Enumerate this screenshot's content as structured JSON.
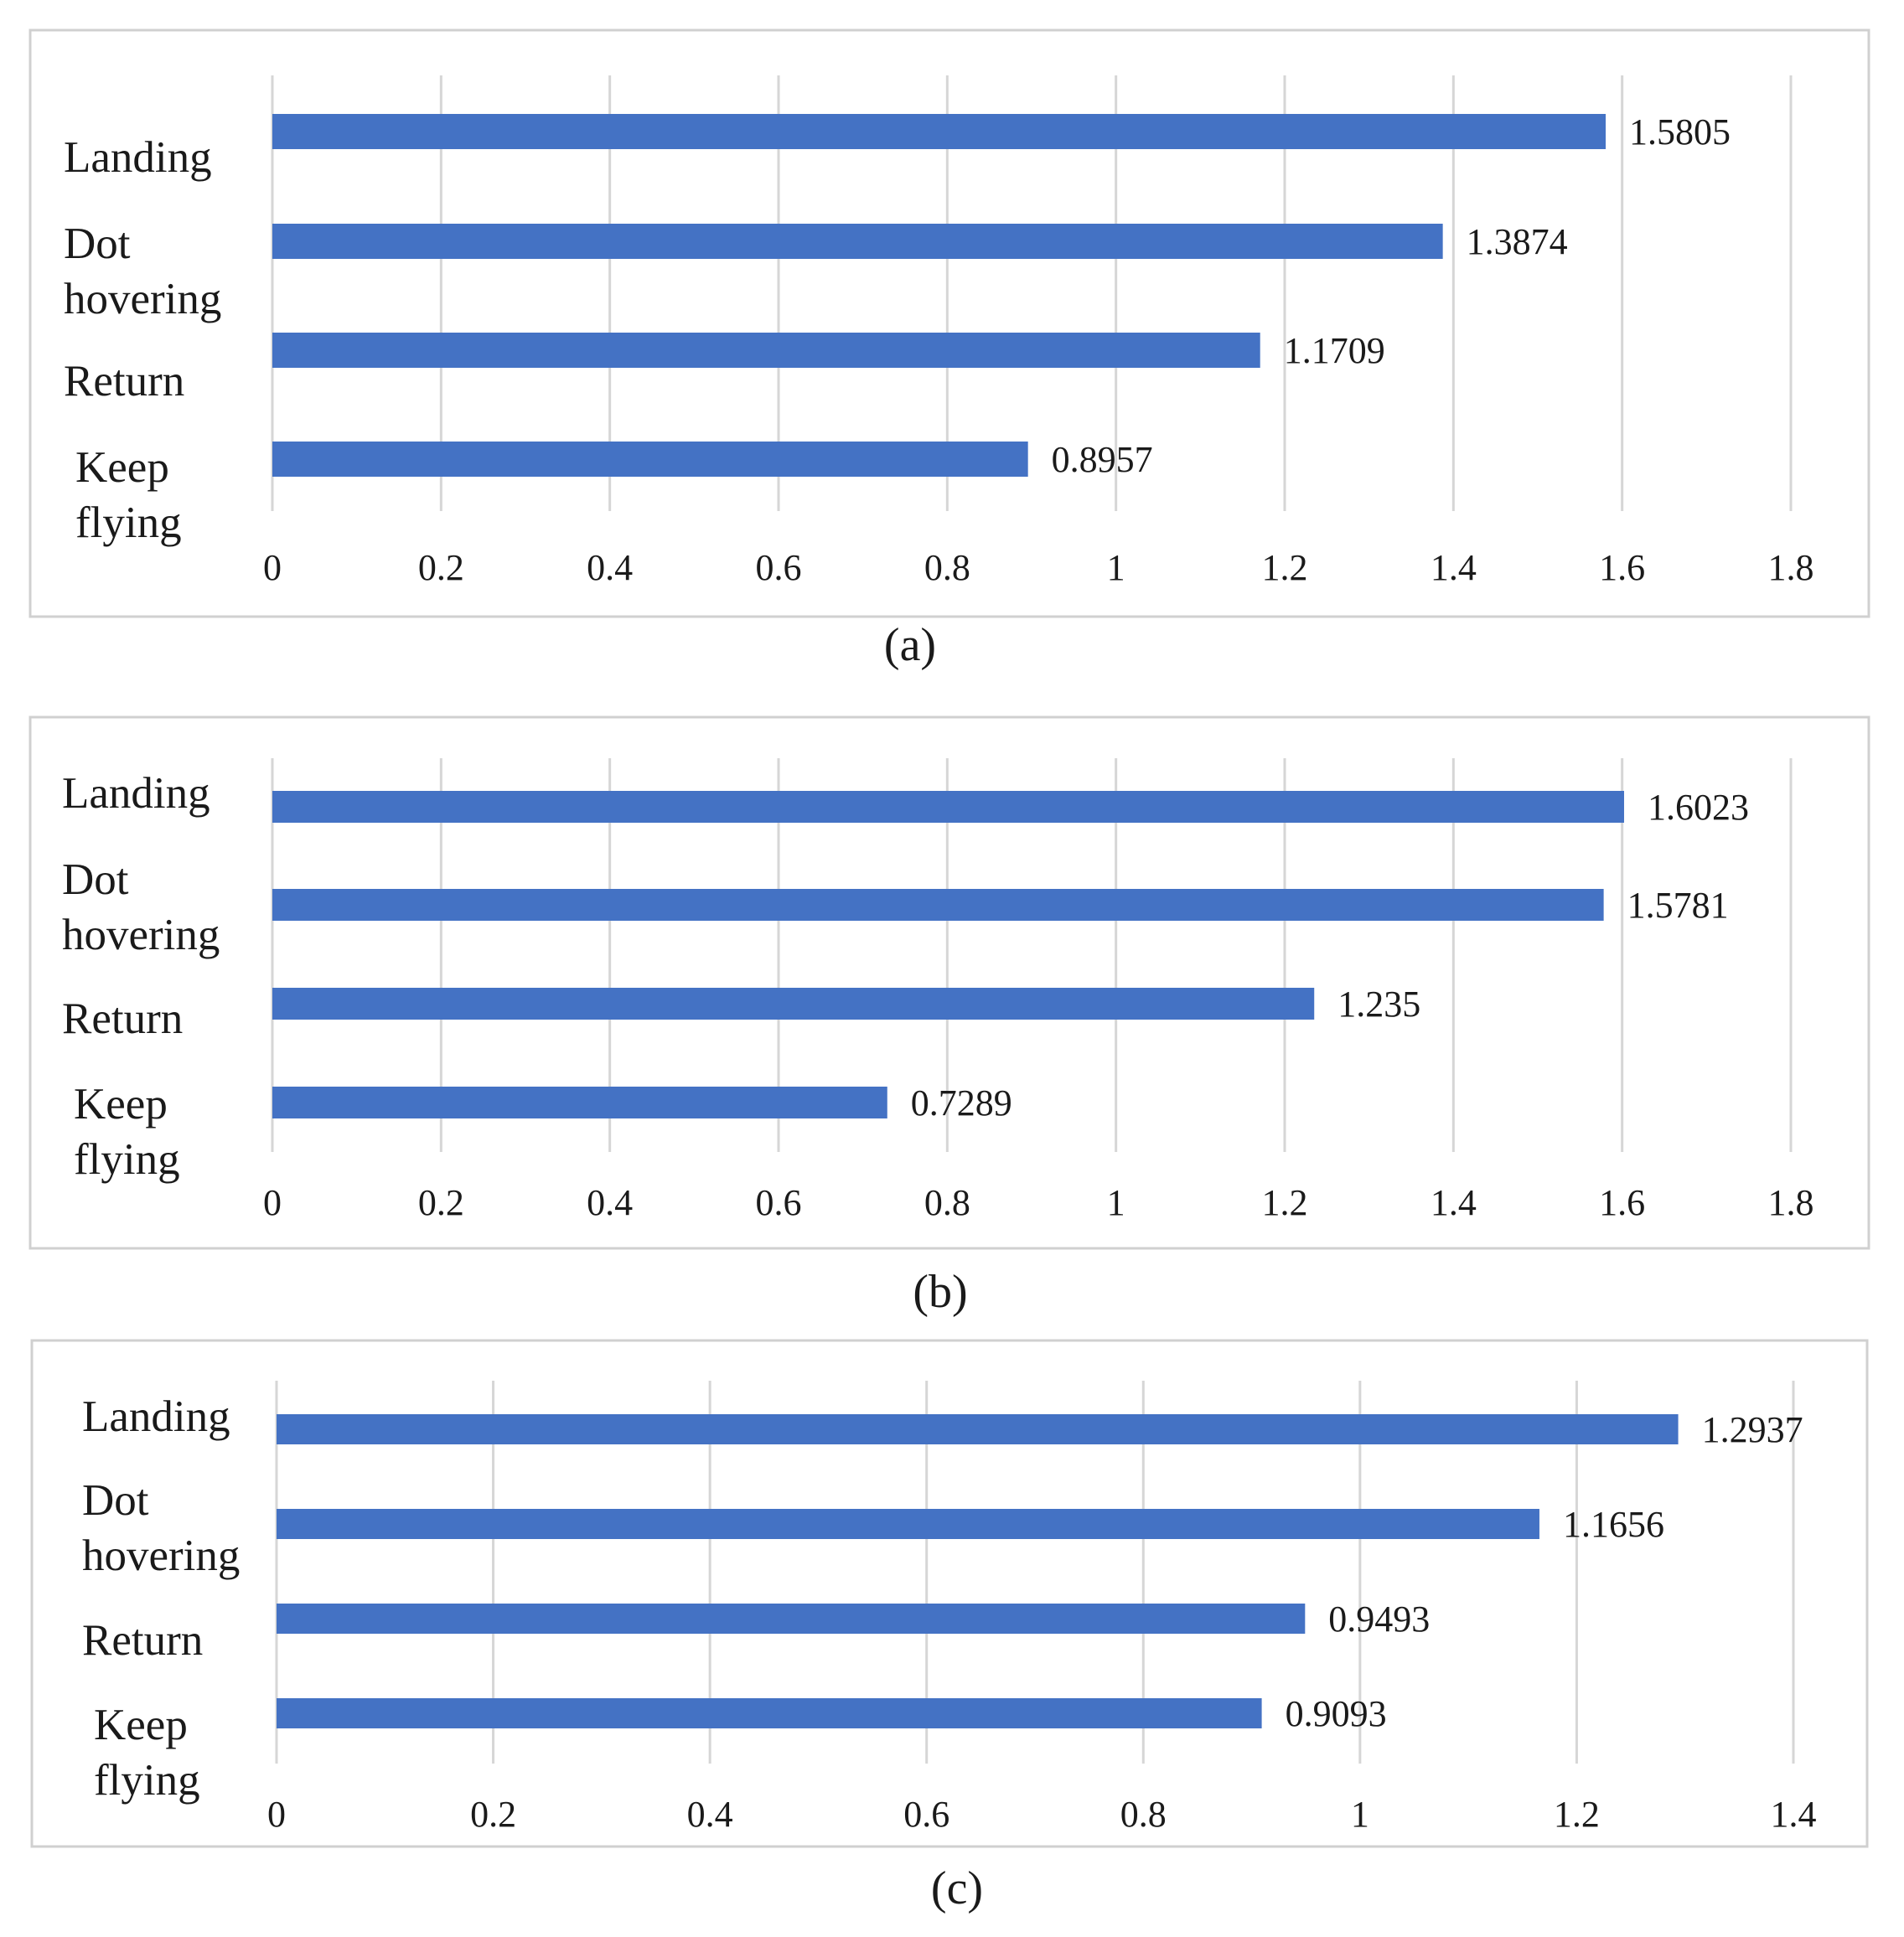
{
  "chart_data": [
    {
      "type": "bar",
      "orientation": "horizontal",
      "caption": "(a)",
      "categories": [
        "Landing",
        "Dot hovering",
        "Return",
        "Keep flying"
      ],
      "category_lines": [
        [
          "Landing"
        ],
        [
          "Dot",
          "hovering"
        ],
        [
          "Return"
        ],
        [
          "Keep",
          "flying"
        ]
      ],
      "values": [
        1.5805,
        1.3874,
        1.1709,
        0.8957
      ],
      "value_labels": [
        "1.5805",
        "1.3874",
        "1.1709",
        "0.8957"
      ],
      "xticks": [
        "0",
        "0.2",
        "0.4",
        "0.6",
        "0.8",
        "1",
        "1.2",
        "1.4",
        "1.6",
        "1.8"
      ],
      "xlim": [
        0,
        1.8
      ],
      "grid": true,
      "bar_color": "#4472c4"
    },
    {
      "type": "bar",
      "orientation": "horizontal",
      "caption": "(b)",
      "categories": [
        "Landing",
        "Dot hovering",
        "Return",
        "Keep flying"
      ],
      "category_lines": [
        [
          "Landing"
        ],
        [
          "Dot",
          "hovering"
        ],
        [
          "Return"
        ],
        [
          "Keep",
          "flying"
        ]
      ],
      "values": [
        1.6023,
        1.5781,
        1.235,
        0.7289
      ],
      "value_labels": [
        "1.6023",
        "1.5781",
        "1.235",
        "0.7289"
      ],
      "xticks": [
        "0",
        "0.2",
        "0.4",
        "0.6",
        "0.8",
        "1",
        "1.2",
        "1.4",
        "1.6",
        "1.8"
      ],
      "xlim": [
        0,
        1.8
      ],
      "grid": true,
      "bar_color": "#4472c4"
    },
    {
      "type": "bar",
      "orientation": "horizontal",
      "caption": "(c)",
      "categories": [
        "Landing",
        "Dot hovering",
        "Return",
        "Keep flying"
      ],
      "category_lines": [
        [
          "Landing"
        ],
        [
          "Dot",
          "hovering"
        ],
        [
          "Return"
        ],
        [
          "Keep",
          "flying"
        ]
      ],
      "values": [
        1.2937,
        1.1656,
        0.9493,
        0.9093
      ],
      "value_labels": [
        "1.2937",
        "1.1656",
        "0.9493",
        "0.9093"
      ],
      "xticks": [
        "0",
        "0.2",
        "0.4",
        "0.6",
        "0.8",
        "1",
        "1.2",
        "1.4"
      ],
      "xlim": [
        0,
        1.4
      ],
      "grid": true,
      "bar_color": "#4472c4"
    }
  ]
}
